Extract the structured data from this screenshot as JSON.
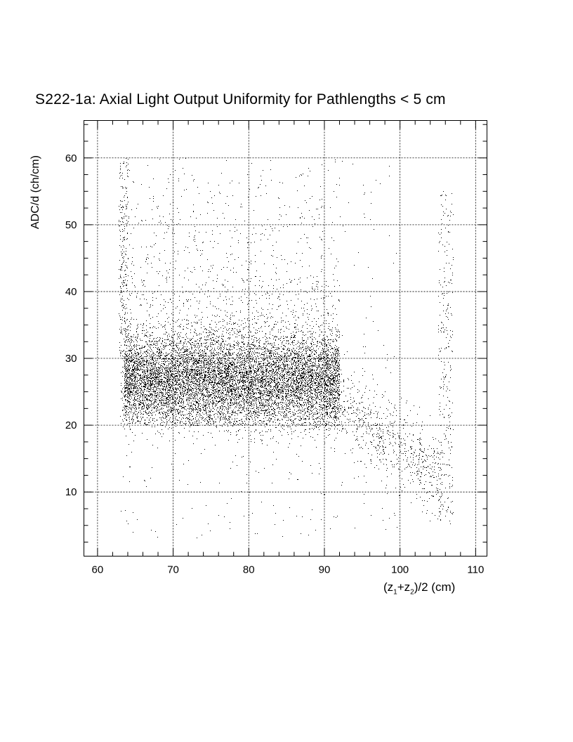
{
  "chart_data": {
    "type": "scatter",
    "title": "S222-1a: Axial Light Output Uniformity for Pathlengths < 5 cm",
    "xlabel": "(z1+z2)/2 (cm)",
    "ylabel": "ADC/d (ch/cm)",
    "xlim": [
      58.2,
      111.5
    ],
    "ylim": [
      0.4,
      65.6
    ],
    "x_ticks": [
      60,
      70,
      80,
      90,
      100,
      110
    ],
    "y_ticks": [
      10,
      20,
      30,
      40,
      50,
      60
    ],
    "x_minor_step": 2,
    "y_minor_step": 2.5,
    "grid": true,
    "marker_color": "#000000",
    "point_clusters": [
      {
        "x_range": [
          63.5,
          92
        ],
        "y_mean": 27,
        "y_sd": 3.3,
        "count": 9000
      },
      {
        "x_range": [
          63,
          92
        ],
        "y_range": [
          20,
          60
        ],
        "count": 2600,
        "y_decay": 12
      },
      {
        "x_range": [
          63,
          100
        ],
        "y_range": [
          3,
          60
        ],
        "count": 450,
        "y_decay": 0
      },
      {
        "x_range": [
          90,
          105.5
        ],
        "y_start": 25,
        "y_end": 12,
        "y_sd": 3,
        "count": 800
      },
      {
        "x_range": [
          105,
          107
        ],
        "y_range": [
          5,
          55
        ],
        "count": 280,
        "y_decay": 0
      },
      {
        "x_range": [
          62.8,
          64
        ],
        "y_range": [
          30,
          60
        ],
        "count": 220,
        "y_decay": 0
      }
    ]
  }
}
